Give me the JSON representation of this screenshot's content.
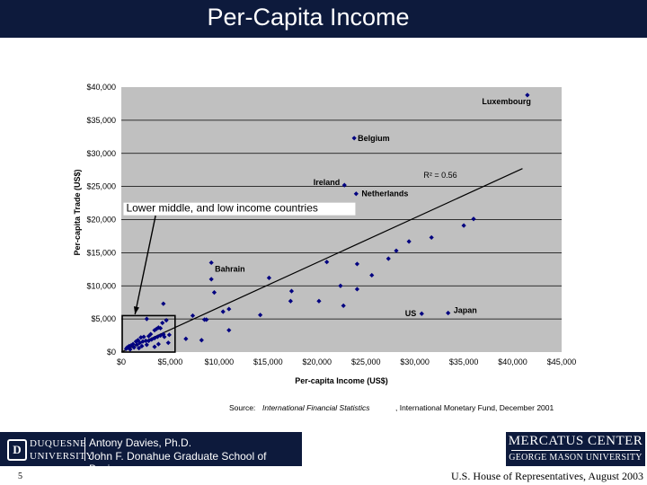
{
  "title": "Per-Capita Income",
  "chart_data": {
    "type": "scatter",
    "xlabel": "Per-capita Income (US$)",
    "ylabel": "Per-capita Trade (US$)",
    "xlim": [
      0,
      45000
    ],
    "ylim": [
      0,
      40000
    ],
    "x_ticks": [
      0,
      5000,
      10000,
      15000,
      20000,
      25000,
      30000,
      35000,
      40000,
      45000
    ],
    "x_tick_labels": [
      "$0",
      "$5,000",
      "$10,000",
      "$15,000",
      "$20,000",
      "$25,000",
      "$30,000",
      "$35,000",
      "$40,000",
      "$45,000"
    ],
    "y_ticks": [
      0,
      5000,
      10000,
      15000,
      20000,
      25000,
      30000,
      35000,
      40000
    ],
    "y_tick_labels": [
      "$0",
      "$5,000",
      "$10,000",
      "$15,000",
      "$20,000",
      "$25,000",
      "$30,000",
      "$35,000",
      "$40,000"
    ],
    "grid": "horizontal",
    "r2_label": "R² = 0.56",
    "trendline": {
      "x": [
        0,
        41000
      ],
      "y": [
        0,
        27700
      ]
    },
    "labeled_points": [
      {
        "label": "Luxembourg",
        "x": 41500,
        "y": 38800
      },
      {
        "label": "Belgium",
        "x": 23800,
        "y": 32300
      },
      {
        "label": "Ireland",
        "x": 22800,
        "y": 25200
      },
      {
        "label": "Netherlands",
        "x": 24000,
        "y": 23900
      },
      {
        "label": "Bahrain",
        "x": 9200,
        "y": 13500
      },
      {
        "label": "US",
        "x": 30700,
        "y": 5800
      },
      {
        "label": "Japan",
        "x": 33400,
        "y": 5900
      }
    ],
    "points": [
      [
        35000,
        19100
      ],
      [
        36000,
        20100
      ],
      [
        31700,
        17300
      ],
      [
        29400,
        16700
      ],
      [
        28100,
        15300
      ],
      [
        27300,
        14100
      ],
      [
        24100,
        13300
      ],
      [
        21000,
        13600
      ],
      [
        25600,
        11600
      ],
      [
        15100,
        11200
      ],
      [
        9200,
        11000
      ],
      [
        9500,
        9000
      ],
      [
        17400,
        9200
      ],
      [
        17300,
        7700
      ],
      [
        24100,
        9500
      ],
      [
        22400,
        10000
      ],
      [
        20200,
        7700
      ],
      [
        22700,
        7000
      ],
      [
        10400,
        6100
      ],
      [
        11000,
        6500
      ],
      [
        14200,
        5600
      ],
      [
        11000,
        3300
      ],
      [
        8500,
        4900
      ],
      [
        7300,
        5500
      ],
      [
        8700,
        4900
      ],
      [
        6600,
        2000
      ],
      [
        8200,
        1800
      ],
      [
        4300,
        7300
      ],
      [
        2600,
        5000
      ],
      [
        3400,
        3300
      ],
      [
        3600,
        3500
      ],
      [
        3800,
        3700
      ],
      [
        4200,
        4400
      ],
      [
        4600,
        4800
      ],
      [
        4000,
        3600
      ],
      [
        4900,
        2600
      ],
      [
        4400,
        2300
      ],
      [
        3000,
        2700
      ],
      [
        2800,
        2400
      ],
      [
        2300,
        2300
      ],
      [
        2000,
        2200
      ],
      [
        1700,
        1800
      ],
      [
        1500,
        1600
      ],
      [
        1200,
        1200
      ],
      [
        1000,
        1000
      ],
      [
        800,
        900
      ],
      [
        600,
        700
      ],
      [
        500,
        500
      ],
      [
        1300,
        700
      ],
      [
        1600,
        1100
      ],
      [
        1900,
        1400
      ],
      [
        2200,
        1600
      ],
      [
        2500,
        1700
      ],
      [
        2800,
        1700
      ],
      [
        3100,
        1900
      ],
      [
        3400,
        2100
      ],
      [
        3700,
        2300
      ],
      [
        4000,
        2500
      ],
      [
        4300,
        2700
      ],
      [
        1800,
        600
      ],
      [
        2100,
        900
      ],
      [
        3800,
        1200
      ],
      [
        4800,
        1400
      ],
      [
        3400,
        800
      ],
      [
        2600,
        1100
      ],
      [
        900,
        400
      ]
    ],
    "annotation": "Lower middle, and low income countries"
  },
  "source": {
    "prefix": "Source:",
    "publication": "International Financial Statistics",
    "publisher": ", International Monetary Fund, December 2001"
  },
  "logo_left": {
    "badge": "D",
    "uni_line1": "DUQUESNE",
    "uni_line2": "UNIVERSITY",
    "name_line1": "Antony Davies, Ph.D.",
    "name_line2": "John F. Donahue Graduate School of Business"
  },
  "logo_right": {
    "line1": "MERCATUS CENTER",
    "line2": "GEORGE MASON UNIVERSITY"
  },
  "page_number": "5",
  "footer_right": "U.S. House of Representatives, August 2003",
  "colors": {
    "title_bar": "#0d1a3c",
    "plot_bg": "#c0c0c0",
    "marker": "#000080"
  }
}
